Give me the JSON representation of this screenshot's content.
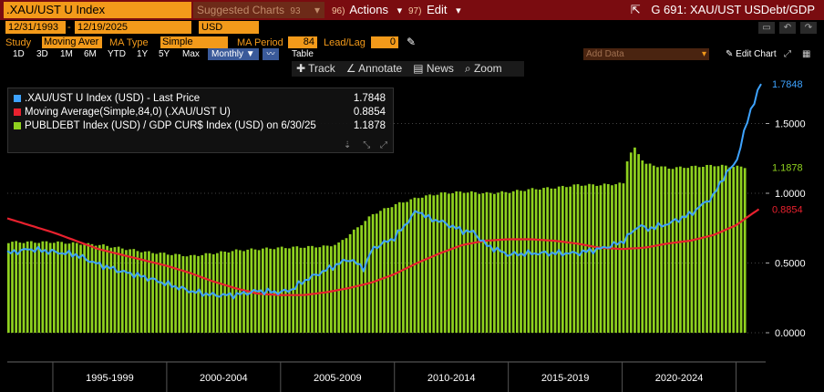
{
  "titlebar": {
    "ticker": ".XAU/UST U Index",
    "suggested": "Suggested Charts",
    "suggested_num": "93",
    "actions_num": "96)",
    "actions": "Actions",
    "edit_num": "97)",
    "edit": "Edit",
    "chart_id": "G 691: XAU/UST USDebt/GDP"
  },
  "controls": {
    "start_date": "12/31/1993",
    "end_date": "12/19/2025",
    "currency": "USD",
    "study_label": "Study",
    "study_value": "Moving Aver",
    "ma_type_label": "MA Type",
    "ma_type_value": "Simple",
    "ma_period_label": "MA Period",
    "ma_period_value": "84",
    "lead_lag_label": "Lead/Lag",
    "lead_lag_value": "0"
  },
  "ranges": [
    "1D",
    "3D",
    "1M",
    "6M",
    "YTD",
    "1Y",
    "5Y",
    "Max"
  ],
  "frequency": "Monthly ▼",
  "table_label": "Table",
  "add_data_placeholder": "Add Data",
  "edit_chart_label": "Edit Chart",
  "chart_tools": [
    "Track",
    "Annotate",
    "News",
    "Zoom"
  ],
  "legend": [
    {
      "label": ".XAU/UST U Index (USD) - Last Price",
      "value": "1.7848",
      "color": "#3ea3ff"
    },
    {
      "label": "Moving Average(Simple,84,0) (.XAU/UST U)",
      "value": "0.8854",
      "color": "#e8212e"
    },
    {
      "label": "PUBLDEBT Index (USD) / GDP CUR$ Index (USD) on 6/30/25",
      "value": "1.1878",
      "color": "#8fd11f"
    }
  ],
  "chart_data": {
    "type": "line",
    "title": "XAU/UST USDebt/GDP",
    "x_labels": [
      "1995-1999",
      "2000-2004",
      "2005-2009",
      "2010-2014",
      "2015-2019",
      "2020-2024"
    ],
    "y_ticks": [
      "0.0000",
      "0.5000",
      "1.0000",
      "1.5000"
    ],
    "ylim": [
      0,
      1.83
    ],
    "xlim": [
      1993.0,
      2026.3
    ],
    "series": [
      {
        "name": ".XAU/UST U Index (USD) - Last Price",
        "type": "line",
        "color": "#3ea3ff",
        "last_value": "1.7848",
        "x": [
          1993.0,
          1994,
          1995,
          1996,
          1997,
          1998,
          1999,
          2000,
          2001,
          2002,
          2003,
          2004,
          2005,
          2005.5,
          2006,
          2007,
          2008,
          2008.7,
          2009,
          2010,
          2010.5,
          2011,
          2011.5,
          2012,
          2013,
          2013.5,
          2014,
          2015,
          2016,
          2017,
          2018,
          2019,
          2020,
          2020.8,
          2021,
          2022,
          2023,
          2024,
          2024.5,
          2025,
          2025.3,
          2025.6,
          2025.9,
          2026.1
        ],
        "values": [
          0.57,
          0.6,
          0.58,
          0.56,
          0.49,
          0.44,
          0.4,
          0.35,
          0.3,
          0.27,
          0.27,
          0.3,
          0.29,
          0.31,
          0.37,
          0.45,
          0.53,
          0.46,
          0.6,
          0.68,
          0.78,
          0.88,
          0.82,
          0.8,
          0.73,
          0.72,
          0.63,
          0.56,
          0.57,
          0.57,
          0.57,
          0.6,
          0.65,
          0.78,
          0.74,
          0.78,
          0.85,
          0.98,
          1.13,
          1.22,
          1.4,
          1.58,
          1.7,
          1.7848
        ]
      },
      {
        "name": "Moving Average(Simple,84,0) (.XAU/UST U)",
        "type": "line",
        "color": "#e8212e",
        "last_value": "0.8854",
        "x": [
          1993.0,
          1994,
          1995,
          1996,
          1997,
          1998,
          1999,
          2000,
          2001,
          2002,
          2003,
          2004,
          2005,
          2006,
          2007,
          2008,
          2009,
          2010,
          2011,
          2012,
          2013,
          2014,
          2015,
          2016,
          2017,
          2018,
          2019,
          2020,
          2021,
          2022,
          2023,
          2024,
          2025,
          2025.5,
          2026.0
        ],
        "values": [
          0.82,
          0.77,
          0.72,
          0.66,
          0.6,
          0.56,
          0.52,
          0.48,
          0.43,
          0.37,
          0.32,
          0.28,
          0.27,
          0.27,
          0.29,
          0.32,
          0.36,
          0.42,
          0.5,
          0.57,
          0.63,
          0.66,
          0.67,
          0.67,
          0.66,
          0.64,
          0.61,
          0.6,
          0.61,
          0.64,
          0.66,
          0.7,
          0.77,
          0.83,
          0.8854
        ]
      },
      {
        "name": "PUBLDEBT Index (USD) / GDP CUR$ Index (USD) on 6/30/25",
        "type": "bar",
        "color": "#8fd11f",
        "last_value": "1.1878",
        "x": [
          1993.0,
          1995,
          1997,
          1999,
          2001,
          2003,
          2005,
          2007,
          2007.5,
          2008.3,
          2009,
          2010,
          2011,
          2012,
          2013,
          2014,
          2015,
          2016,
          2017,
          2018,
          2019,
          2020,
          2020.2,
          2020.5,
          2020.8,
          2021,
          2022,
          2023,
          2024,
          2025,
          2025.5
        ],
        "values": [
          0.65,
          0.65,
          0.63,
          0.58,
          0.55,
          0.59,
          0.61,
          0.62,
          0.64,
          0.75,
          0.85,
          0.92,
          0.97,
          1.0,
          1.01,
          1.0,
          1.01,
          1.03,
          1.04,
          1.06,
          1.06,
          1.07,
          1.27,
          1.32,
          1.25,
          1.21,
          1.18,
          1.19,
          1.2,
          1.19,
          1.1878
        ]
      }
    ]
  }
}
